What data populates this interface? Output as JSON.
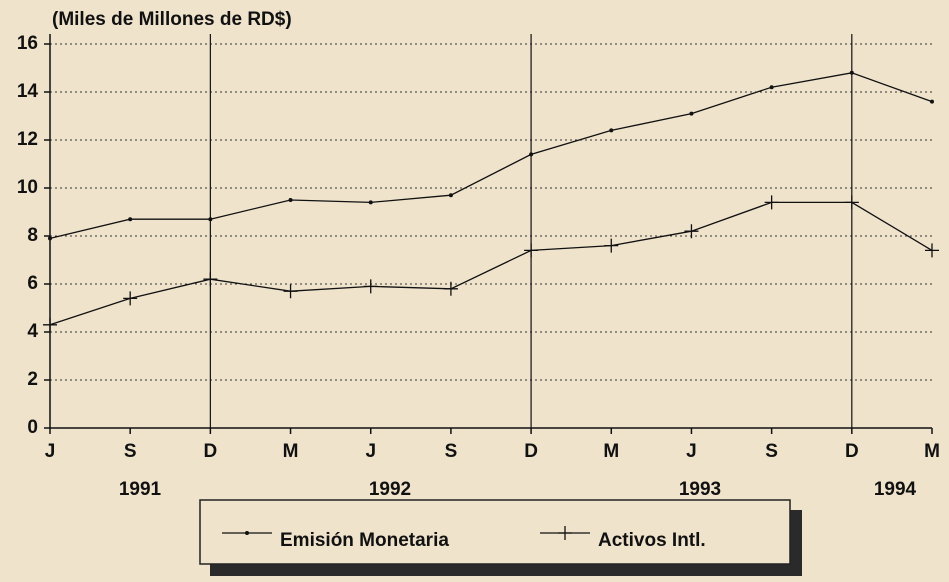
{
  "chart_data": {
    "type": "line",
    "title": "(Miles de Millones de RD$)",
    "categories": [
      "J",
      "S",
      "D",
      "M",
      "J",
      "S",
      "D",
      "M",
      "J",
      "S",
      "D",
      "M"
    ],
    "year_labels": [
      "1991",
      "1992",
      "1993",
      "1994"
    ],
    "series": [
      {
        "name": "Emisión Monetaria",
        "color": "#111111",
        "marker": "dot",
        "values": [
          7.9,
          8.7,
          8.7,
          9.5,
          9.4,
          9.7,
          11.4,
          12.4,
          13.1,
          14.2,
          14.8,
          13.6
        ]
      },
      {
        "name": "Activos Intl.",
        "color": "#111111",
        "marker": "cross",
        "values": [
          4.3,
          5.4,
          6.2,
          5.7,
          5.9,
          5.8,
          7.4,
          7.6,
          8.2,
          9.4,
          9.4,
          7.4
        ]
      }
    ],
    "ylim": [
      0,
      16
    ],
    "yticks": [
      0,
      2,
      4,
      6,
      8,
      10,
      12,
      14,
      16
    ],
    "grid": true
  }
}
